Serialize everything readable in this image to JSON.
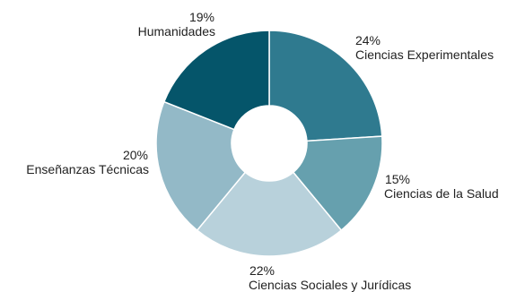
{
  "chart_data": {
    "type": "pie",
    "donut": true,
    "title": "",
    "slices": [
      {
        "label": "Ciencias Experimentales",
        "value": 24,
        "display": "24%",
        "color": "#2f7a8f"
      },
      {
        "label": "Ciencias de la Salud",
        "value": 15,
        "display": "15%",
        "color": "#66a0ae"
      },
      {
        "label": "Ciencias Sociales y Jurídicas",
        "value": 22,
        "display": "22%",
        "color": "#b8d1db"
      },
      {
        "label": "Enseñanzas Técnicas",
        "value": 20,
        "display": "20%",
        "color": "#93b9c7"
      },
      {
        "label": "Humanidades",
        "value": 19,
        "display": "19%",
        "color": "#05556a"
      }
    ],
    "start_angle_deg": 0,
    "direction": "clockwise",
    "legend": "none"
  }
}
